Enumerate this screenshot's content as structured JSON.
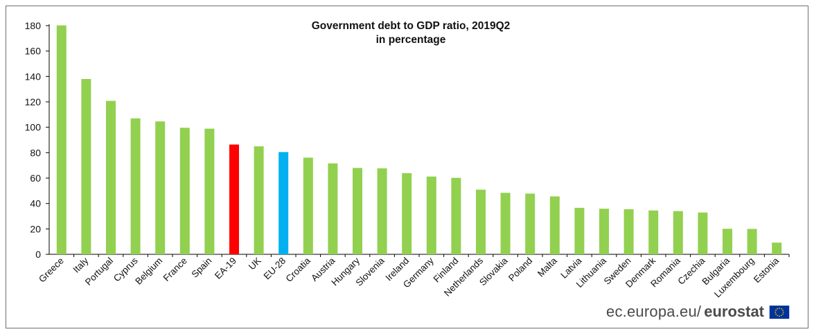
{
  "chart_data": {
    "type": "bar",
    "title": "Government debt to GDP ratio, 2019Q2",
    "subtitle": "in percentage",
    "xlabel": "",
    "ylabel": "",
    "ylim": [
      0,
      180
    ],
    "yticks": [
      0,
      20,
      40,
      60,
      80,
      100,
      120,
      140,
      160,
      180
    ],
    "grid": false,
    "categories": [
      "Greece",
      "Italy",
      "Portugal",
      "Cyprus",
      "Belgium",
      "France",
      "Spain",
      "EA-19",
      "UK",
      "EU-28",
      "Croatia",
      "Austria",
      "Hungary",
      "Slovenia",
      "Ireland",
      "Germany",
      "Finland",
      "Netherlands",
      "Slovakia",
      "Poland",
      "Malta",
      "Latvia",
      "Lithuania",
      "Sweden",
      "Denmark",
      "Romania",
      "Czechia",
      "Bulgaria",
      "Luxembourg",
      "Estonia"
    ],
    "values": [
      180.2,
      138.0,
      120.8,
      107.0,
      104.6,
      99.6,
      98.9,
      86.4,
      85.0,
      80.5,
      76.1,
      71.6,
      68.0,
      67.7,
      63.9,
      61.2,
      60.2,
      50.9,
      48.4,
      47.8,
      45.6,
      36.6,
      35.9,
      35.5,
      34.5,
      34.0,
      32.9,
      20.1,
      20.0,
      9.2
    ],
    "colors": {
      "default": "#92d050",
      "EA-19": "#ff0000",
      "EU-28": "#00b0f0"
    }
  },
  "footer": {
    "url": "ec.europa.eu/",
    "brand": "eurostat",
    "flag_icon": "eu-flag-icon",
    "flag_colors": {
      "field": "#003399",
      "stars": "#ffcc00"
    }
  }
}
